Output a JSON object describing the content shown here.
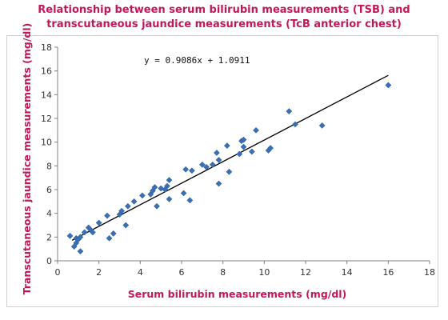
{
  "chart_data": {
    "type": "scatter",
    "title_lines": [
      "Relationship between serum bilirubin measurements (TSB) and",
      "transcutaneous jaundice measurements (TcB anterior chest)"
    ],
    "xlabel": "Serum bilirubin measurements (mg/dl)",
    "ylabel": "Transcutaneous jaundice measurements (mg/dl)",
    "xlim": [
      0,
      18
    ],
    "ylim": [
      0,
      18
    ],
    "xticks": [
      0,
      2,
      4,
      6,
      8,
      10,
      12,
      14,
      16,
      18
    ],
    "yticks": [
      0,
      2,
      4,
      6,
      8,
      10,
      12,
      14,
      16,
      18
    ],
    "grid": false,
    "marker_color": "#3a6fb5",
    "line_color": "#000000",
    "trendline": {
      "label": "y = 0.9086x + 1.0911",
      "slope": 0.9086,
      "intercept": 1.0911,
      "x_range": [
        0.7,
        16
      ]
    },
    "points": [
      [
        0.6,
        2.1
      ],
      [
        0.8,
        1.2
      ],
      [
        0.9,
        1.5
      ],
      [
        0.9,
        1.9
      ],
      [
        1.0,
        1.8
      ],
      [
        1.1,
        0.8
      ],
      [
        1.1,
        2.0
      ],
      [
        1.3,
        2.4
      ],
      [
        1.5,
        2.8
      ],
      [
        1.6,
        2.6
      ],
      [
        1.7,
        2.4
      ],
      [
        2.0,
        3.2
      ],
      [
        2.4,
        3.8
      ],
      [
        2.5,
        1.9
      ],
      [
        2.7,
        2.3
      ],
      [
        3.0,
        3.9
      ],
      [
        3.1,
        4.2
      ],
      [
        3.3,
        3.0
      ],
      [
        3.4,
        4.6
      ],
      [
        3.7,
        5.0
      ],
      [
        4.1,
        5.5
      ],
      [
        4.5,
        5.6
      ],
      [
        4.6,
        5.9
      ],
      [
        4.7,
        6.2
      ],
      [
        4.8,
        4.6
      ],
      [
        5.0,
        6.1
      ],
      [
        5.2,
        6.0
      ],
      [
        5.3,
        6.3
      ],
      [
        5.4,
        5.2
      ],
      [
        5.4,
        6.8
      ],
      [
        6.1,
        5.7
      ],
      [
        6.2,
        7.7
      ],
      [
        6.4,
        5.1
      ],
      [
        6.5,
        7.6
      ],
      [
        7.0,
        8.1
      ],
      [
        7.2,
        7.9
      ],
      [
        7.5,
        8.1
      ],
      [
        7.7,
        9.1
      ],
      [
        7.8,
        6.5
      ],
      [
        7.8,
        8.5
      ],
      [
        8.2,
        9.7
      ],
      [
        8.3,
        7.5
      ],
      [
        8.8,
        9.0
      ],
      [
        8.9,
        10.1
      ],
      [
        9.0,
        9.6
      ],
      [
        9.0,
        10.2
      ],
      [
        9.4,
        9.2
      ],
      [
        9.6,
        11.0
      ],
      [
        10.2,
        9.3
      ],
      [
        10.3,
        9.5
      ],
      [
        11.2,
        12.6
      ],
      [
        11.5,
        11.5
      ],
      [
        12.8,
        11.4
      ],
      [
        16.0,
        14.8
      ]
    ]
  }
}
